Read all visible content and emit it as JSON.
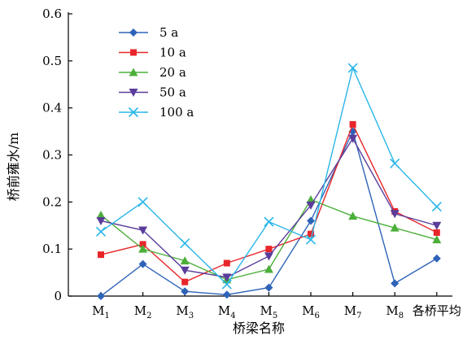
{
  "chart_data": {
    "type": "line",
    "categories": [
      {
        "base": "M",
        "sub": "1"
      },
      {
        "base": "M",
        "sub": "2"
      },
      {
        "base": "M",
        "sub": "3"
      },
      {
        "base": "M",
        "sub": "4"
      },
      {
        "base": "M",
        "sub": "5"
      },
      {
        "base": "M",
        "sub": "6"
      },
      {
        "base": "M",
        "sub": "7"
      },
      {
        "base": "M",
        "sub": "8"
      },
      {
        "base": "各桥平均",
        "sub": ""
      }
    ],
    "xlabel": "桥梁名称",
    "ylabel": "桥前雍水/m",
    "ylim": [
      0,
      0.6
    ],
    "yticks": [
      "0",
      "0.1",
      "0.2",
      "0.3",
      "0.4",
      "0.5",
      "0.6"
    ],
    "grid": false,
    "legend_position": "top-left",
    "series": [
      {
        "name": "5 a",
        "color": "#2e63b8",
        "marker": "diamond",
        "values": [
          0.0,
          0.068,
          0.01,
          0.003,
          0.018,
          0.16,
          0.35,
          0.027,
          0.08
        ]
      },
      {
        "name": "10 a",
        "color": "#e8262a",
        "marker": "square",
        "values": [
          0.088,
          0.11,
          0.03,
          0.07,
          0.1,
          0.132,
          0.365,
          0.18,
          0.135
        ]
      },
      {
        "name": "20 a",
        "color": "#4caf3a",
        "marker": "triangle-up",
        "values": [
          0.172,
          0.1,
          0.075,
          0.035,
          0.057,
          0.205,
          0.17,
          0.145,
          0.12
        ]
      },
      {
        "name": "50 a",
        "color": "#5a3d9b",
        "marker": "triangle-down",
        "values": [
          0.16,
          0.14,
          0.055,
          0.04,
          0.085,
          0.193,
          0.335,
          0.175,
          0.15
        ]
      },
      {
        "name": "100 a",
        "color": "#29b6e8",
        "marker": "x",
        "values": [
          0.137,
          0.2,
          0.112,
          0.025,
          0.158,
          0.12,
          0.485,
          0.282,
          0.19
        ]
      }
    ]
  }
}
